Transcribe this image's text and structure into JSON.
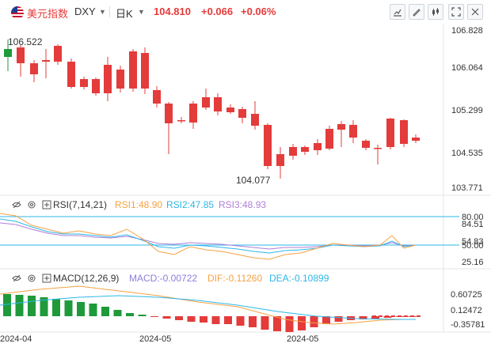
{
  "header": {
    "symbol_name": "美元指数",
    "symbol_code": "DXY",
    "timeframe": "日K",
    "price": "104.810",
    "change": "+0.066",
    "change_pct": "+0.06%",
    "colors": {
      "down": "#e43b3b",
      "up": "#1e9a3a"
    }
  },
  "main": {
    "price_labels": [
      "106.828",
      "106.064",
      "105.299",
      "104.535",
      "103.771"
    ],
    "high_label": "106.522",
    "low_label": "104.077"
  },
  "rsi": {
    "title": "RSI(7,14,21)",
    "rsi1": "RSI1:48.90",
    "rsi2": "RSI2:47.85",
    "rsi3": "RSI3:48.93",
    "axis_labels": [
      "80.00",
      "84.51",
      "54.83",
      "50.00",
      "25.16"
    ],
    "colors": {
      "rsi1": "#f5a142",
      "rsi2": "#2db7e8",
      "rsi3": "#b07fd8"
    }
  },
  "macd": {
    "title": "MACD(12,26,9)",
    "macd": "MACD:-0.00722",
    "dif": "DIF:-0.11260",
    "dea": "DEA:-0.10899",
    "axis_labels": [
      "0.60725",
      "0.12472",
      "-0.35781"
    ],
    "colors": {
      "macd": "#8a7fd8",
      "dif": "#f5a142",
      "dea": "#2db7e8"
    }
  },
  "dates": [
    "2024-04",
    "2024-05",
    "2024-05"
  ],
  "toolbar_icons": [
    "indicator-icon",
    "draw-icon",
    "candle-type-icon",
    "fullscreen-icon",
    "settings-icon"
  ]
}
